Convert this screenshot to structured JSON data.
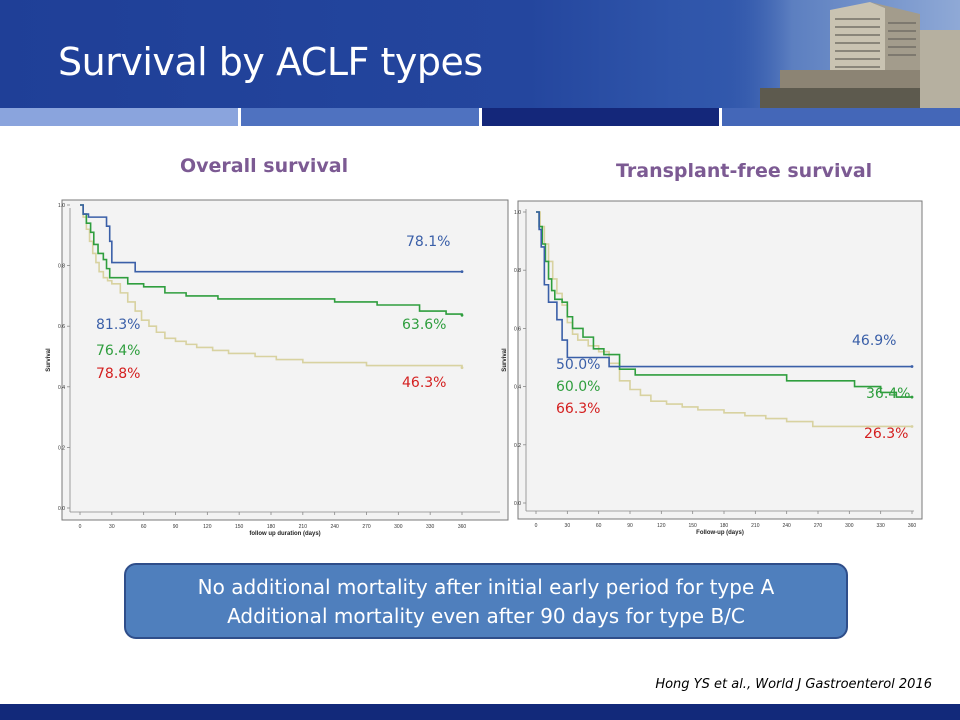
{
  "slide": {
    "title": "Survival by ACLF types",
    "callout": [
      "No additional mortality after initial early period for type A",
      "Additional mortality even after 90 days for type B/C"
    ],
    "citation": "Hong YS et al., World J Gastroenterol 2016"
  },
  "colors": {
    "header_blue": "#1f3f97",
    "stripe": [
      "#8aa4dd",
      "#4f72c0",
      "#14277a",
      "#4467b8"
    ],
    "type_a": "#3a5fa8",
    "type_b": "#2f9e3e",
    "type_c": "#d8d2a0",
    "label_a": "#3a5fa8",
    "label_b": "#2f9e3e",
    "label_c": "#d42020",
    "title_purple": "#7c5a93"
  },
  "chart_data": [
    {
      "type": "line",
      "title": "Overall survival",
      "xlabel": "follow up duration (days)",
      "ylabel": "Survival",
      "xlim": [
        0,
        360
      ],
      "ylim": [
        0,
        1.0
      ],
      "xticks": [
        0,
        30,
        60,
        90,
        120,
        150,
        180,
        210,
        240,
        270,
        300,
        330,
        360
      ],
      "yticks": [
        0.0,
        0.2,
        0.4,
        0.6,
        0.8,
        1.0
      ],
      "series": [
        {
          "key": "a",
          "points": [
            [
              0,
              1.0
            ],
            [
              3,
              0.97
            ],
            [
              8,
              0.96
            ],
            [
              20,
              0.96
            ],
            [
              25,
              0.93
            ],
            [
              28,
              0.88
            ],
            [
              30,
              0.81
            ],
            [
              50,
              0.81
            ],
            [
              52,
              0.78
            ],
            [
              360,
              0.78
            ]
          ]
        },
        {
          "key": "b",
          "points": [
            [
              0,
              1.0
            ],
            [
              3,
              0.97
            ],
            [
              6,
              0.94
            ],
            [
              10,
              0.91
            ],
            [
              13,
              0.87
            ],
            [
              17,
              0.84
            ],
            [
              22,
              0.82
            ],
            [
              25,
              0.79
            ],
            [
              28,
              0.76
            ],
            [
              45,
              0.74
            ],
            [
              60,
              0.73
            ],
            [
              80,
              0.71
            ],
            [
              100,
              0.7
            ],
            [
              130,
              0.69
            ],
            [
              240,
              0.68
            ],
            [
              280,
              0.67
            ],
            [
              320,
              0.65
            ],
            [
              345,
              0.64
            ],
            [
              360,
              0.636
            ]
          ]
        },
        {
          "key": "c",
          "points": [
            [
              0,
              1.0
            ],
            [
              3,
              0.96
            ],
            [
              6,
              0.92
            ],
            [
              9,
              0.88
            ],
            [
              12,
              0.84
            ],
            [
              15,
              0.81
            ],
            [
              18,
              0.78
            ],
            [
              22,
              0.76
            ],
            [
              26,
              0.75
            ],
            [
              30,
              0.74
            ],
            [
              38,
              0.71
            ],
            [
              45,
              0.68
            ],
            [
              52,
              0.65
            ],
            [
              58,
              0.62
            ],
            [
              65,
              0.6
            ],
            [
              72,
              0.58
            ],
            [
              80,
              0.56
            ],
            [
              90,
              0.55
            ],
            [
              100,
              0.54
            ],
            [
              110,
              0.53
            ],
            [
              125,
              0.52
            ],
            [
              140,
              0.51
            ],
            [
              165,
              0.5
            ],
            [
              185,
              0.49
            ],
            [
              210,
              0.48
            ],
            [
              270,
              0.47
            ],
            [
              360,
              0.463
            ]
          ]
        }
      ],
      "annotations": [
        {
          "text": "78.1%",
          "color": "label_a",
          "at": "end-a"
        },
        {
          "text": "63.6%",
          "color": "label_b",
          "at": "end-b"
        },
        {
          "text": "46.3%",
          "color": "label_c",
          "at": "end-c"
        },
        {
          "text": "81.3%",
          "color": "label_a",
          "at": "early-a"
        },
        {
          "text": "76.4%",
          "color": "label_b",
          "at": "early-b"
        },
        {
          "text": "78.8%",
          "color": "label_c",
          "at": "early-c"
        }
      ]
    },
    {
      "type": "line",
      "title": "Transplant-free survival",
      "xlabel": "Follow-up (days)",
      "ylabel": "Survival",
      "xlim": [
        0,
        360
      ],
      "ylim": [
        0,
        1.0
      ],
      "xticks": [
        0,
        30,
        60,
        90,
        120,
        150,
        180,
        210,
        240,
        270,
        300,
        330,
        360
      ],
      "yticks": [
        0.0,
        0.2,
        0.4,
        0.6,
        0.8,
        1.0
      ],
      "series": [
        {
          "key": "a",
          "points": [
            [
              0,
              1.0
            ],
            [
              3,
              0.94
            ],
            [
              5,
              0.88
            ],
            [
              8,
              0.75
            ],
            [
              12,
              0.69
            ],
            [
              18,
              0.69
            ],
            [
              20,
              0.63
            ],
            [
              25,
              0.56
            ],
            [
              30,
              0.5
            ],
            [
              60,
              0.5
            ],
            [
              70,
              0.469
            ],
            [
              360,
              0.469
            ]
          ]
        },
        {
          "key": "b",
          "points": [
            [
              0,
              1.0
            ],
            [
              3,
              0.95
            ],
            [
              6,
              0.89
            ],
            [
              9,
              0.83
            ],
            [
              12,
              0.77
            ],
            [
              15,
              0.73
            ],
            [
              18,
              0.7
            ],
            [
              25,
              0.69
            ],
            [
              30,
              0.64
            ],
            [
              35,
              0.6
            ],
            [
              45,
              0.57
            ],
            [
              55,
              0.53
            ],
            [
              65,
              0.51
            ],
            [
              80,
              0.46
            ],
            [
              95,
              0.44
            ],
            [
              150,
              0.44
            ],
            [
              240,
              0.42
            ],
            [
              300,
              0.42
            ],
            [
              305,
              0.4
            ],
            [
              330,
              0.38
            ],
            [
              345,
              0.364
            ],
            [
              360,
              0.364
            ]
          ]
        },
        {
          "key": "c",
          "points": [
            [
              0,
              1.0
            ],
            [
              4,
              0.95
            ],
            [
              8,
              0.89
            ],
            [
              12,
              0.83
            ],
            [
              16,
              0.77
            ],
            [
              20,
              0.72
            ],
            [
              25,
              0.68
            ],
            [
              30,
              0.62
            ],
            [
              35,
              0.58
            ],
            [
              40,
              0.56
            ],
            [
              50,
              0.54
            ],
            [
              60,
              0.52
            ],
            [
              70,
              0.48
            ],
            [
              80,
              0.42
            ],
            [
              90,
              0.39
            ],
            [
              100,
              0.37
            ],
            [
              110,
              0.35
            ],
            [
              125,
              0.34
            ],
            [
              140,
              0.33
            ],
            [
              155,
              0.32
            ],
            [
              180,
              0.31
            ],
            [
              200,
              0.3
            ],
            [
              220,
              0.29
            ],
            [
              240,
              0.28
            ],
            [
              265,
              0.263
            ],
            [
              360,
              0.263
            ]
          ]
        }
      ],
      "annotations": [
        {
          "text": "46.9%",
          "color": "label_a",
          "at": "end-a"
        },
        {
          "text": "36.4%",
          "color": "label_b",
          "at": "end-b"
        },
        {
          "text": "26.3%",
          "color": "label_c",
          "at": "end-c"
        },
        {
          "text": "50.0%",
          "color": "label_a",
          "at": "early-a"
        },
        {
          "text": "60.0%",
          "color": "label_b",
          "at": "early-b"
        },
        {
          "text": "66.3%",
          "color": "label_c",
          "at": "early-c"
        }
      ]
    }
  ]
}
